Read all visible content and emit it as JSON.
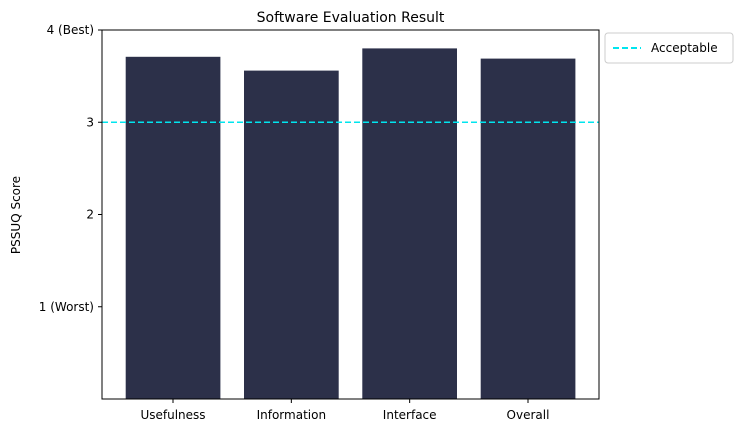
{
  "chart_data": {
    "type": "bar",
    "title": "Software Evaluation Result",
    "xlabel": "",
    "ylabel": "PSSUQ Score",
    "categories": [
      "Usefulness",
      "Information",
      "Interface",
      "Overall"
    ],
    "values": [
      3.71,
      3.56,
      3.8,
      3.69
    ],
    "ylim": [
      0,
      4
    ],
    "yticks": [
      {
        "value": 1,
        "label": "1 (Worst)"
      },
      {
        "value": 2,
        "label": "2"
      },
      {
        "value": 3,
        "label": "3"
      },
      {
        "value": 4,
        "label": "4 (Best)"
      }
    ],
    "reference_line": {
      "value": 3,
      "label": "Acceptable",
      "style": "dashed",
      "color": "#00e5ee"
    },
    "bar_color": "#2c3049",
    "grid": false,
    "legend_placement": "outside-top-right"
  }
}
